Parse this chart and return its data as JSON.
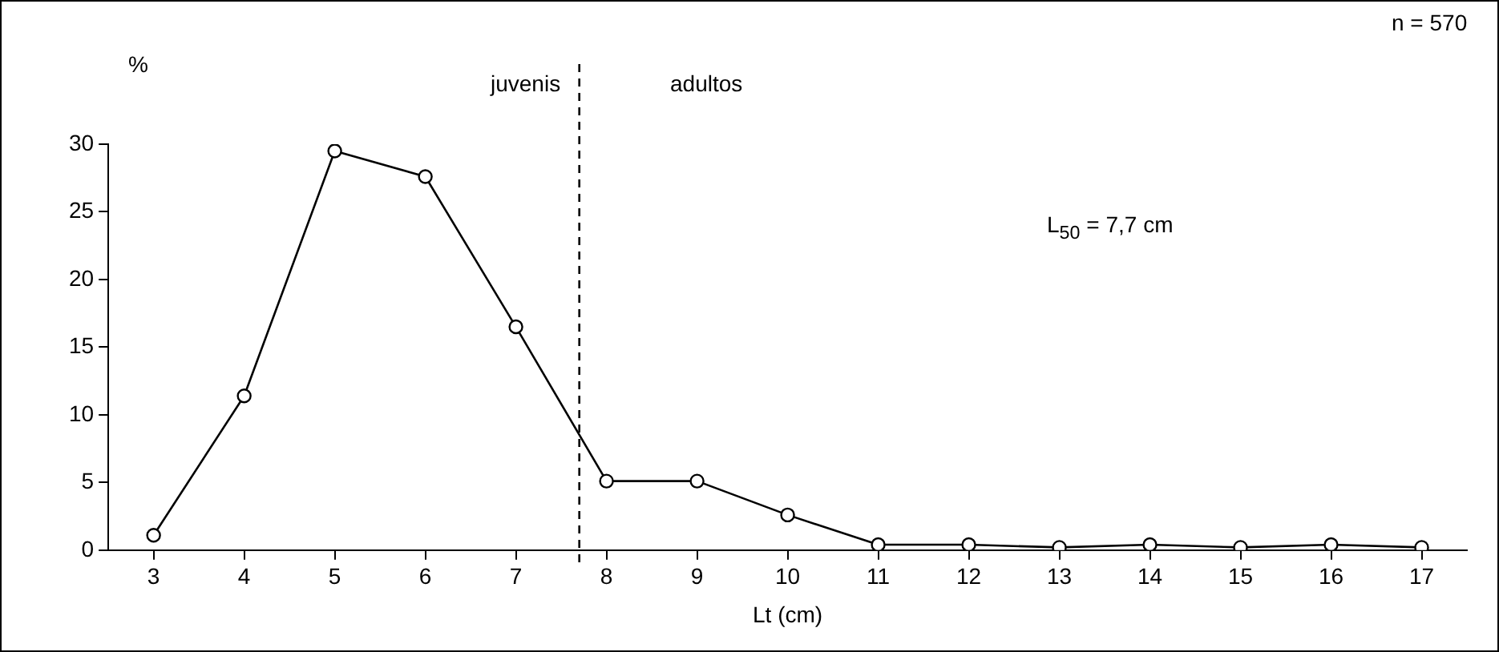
{
  "chart_data": {
    "type": "line",
    "xlabel": "Lt (cm)",
    "ylabel": "%",
    "x": [
      3,
      4,
      5,
      6,
      7,
      8,
      9,
      10,
      11,
      12,
      13,
      14,
      15,
      16,
      17
    ],
    "series": [
      {
        "color": "#000000",
        "values": [
          1.1,
          11.4,
          29.5,
          27.6,
          16.5,
          5.1,
          5.1,
          2.6,
          0.4,
          0.4,
          0.2,
          0.4,
          0.2,
          0.4,
          0.2
        ]
      }
    ],
    "xlim": [
      2.5,
      17.5
    ],
    "xticks": [
      3,
      4,
      5,
      6,
      7,
      8,
      9,
      10,
      11,
      12,
      13,
      14,
      15,
      16,
      17
    ],
    "ylim": [
      0,
      30
    ],
    "yticks": [
      0,
      5,
      10,
      15,
      20,
      25,
      30
    ],
    "ref_lines": [
      {
        "axis": "x",
        "value": 7.7,
        "line_style": "dashed",
        "color": "#000000"
      }
    ],
    "annotations": [
      "juvenis",
      "adultos",
      "L$_{50}$ = 7,7 cm",
      "n = 570"
    ],
    "marker": "circle",
    "line_style": "solid",
    "grid": false,
    "legend": false
  }
}
